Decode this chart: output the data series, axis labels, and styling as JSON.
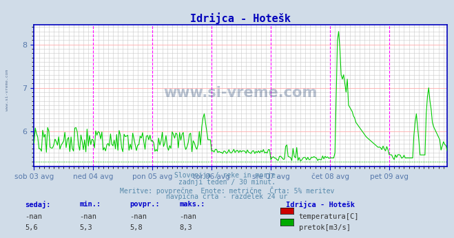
{
  "title": "Idrijca - Hotešk",
  "bg_color": "#d0dce8",
  "plot_bg_color": "#ffffff",
  "grid_color": "#c8c8c8",
  "grid_red_color": "#ffaaaa",
  "line_color": "#00cc00",
  "vline_color": "#ff00ff",
  "vline_style": "--",
  "axis_color": "#0000bb",
  "title_color": "#0000bb",
  "tick_color": "#5577aa",
  "ylim_low": 5.18,
  "ylim_high": 8.45,
  "yticks": [
    6.0,
    7.0,
    8.0
  ],
  "n_points": 336,
  "x_day_labels": [
    "sob 03 avg",
    "ned 04 avg",
    "pon 05 avg",
    "tor 06 avg",
    "sre 07 avg",
    "čet 08 avg",
    "pet 09 avg"
  ],
  "x_day_positions": [
    0,
    48,
    96,
    144,
    192,
    240,
    288
  ],
  "vline_positions": [
    48,
    96,
    144,
    192,
    240,
    288,
    335
  ],
  "watermark": "www.si-vreme.com",
  "subtitle_lines": [
    "Slovenija / reke in morje.",
    "zadnji teden / 30 minut.",
    "Meritve: povprečne  Enote: metrične  Črta: 5% meritev",
    "navpična črta - razdelek 24 ur"
  ],
  "legend_title": "Idrijca - Hotešk",
  "legend_items": [
    {
      "label": "temperatura[C]",
      "color": "#cc0000"
    },
    {
      "label": "pretok[m3/s]",
      "color": "#00aa00"
    }
  ],
  "table_headers": [
    "sedaj:",
    "min.:",
    "povpr.:",
    "maks.:"
  ],
  "table_rows": [
    [
      "-nan",
      "-nan",
      "-nan",
      "-nan"
    ],
    [
      "5,6",
      "5,3",
      "5,8",
      "8,3"
    ]
  ],
  "hline_value": 5.3,
  "hline_color": "#00cc00",
  "hline_style": ":"
}
